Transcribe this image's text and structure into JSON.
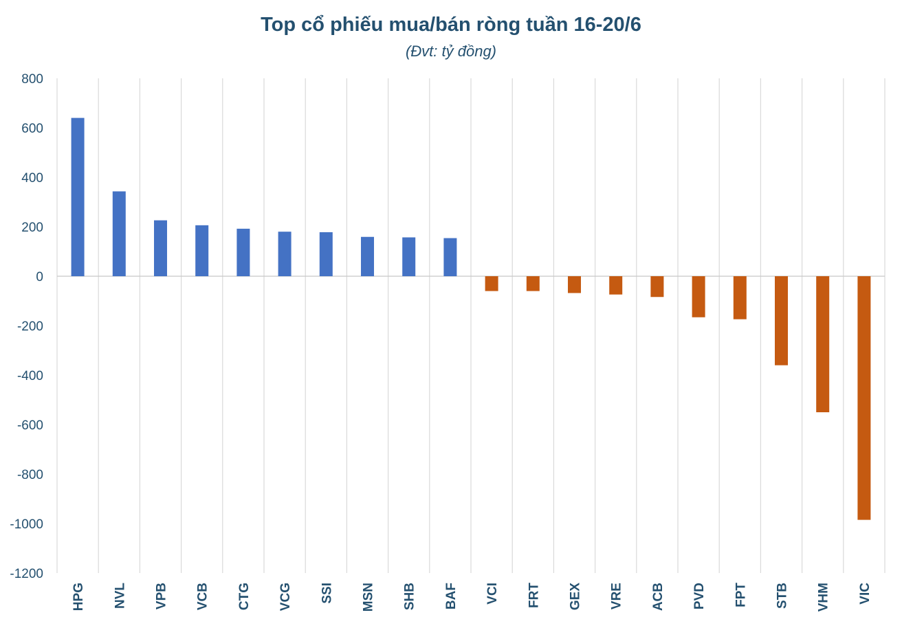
{
  "chart_data": {
    "type": "bar",
    "title": "Top cổ phiếu mua/bán ròng tuần 16-20/6",
    "subtitle": "(Đvt: tỷ đồng)",
    "xlabel": "",
    "ylabel": "",
    "ylim": [
      -1200,
      800
    ],
    "yticks": [
      800,
      600,
      400,
      200,
      0,
      -200,
      -400,
      -600,
      -800,
      -1000,
      -1200
    ],
    "grid": "vertical",
    "legend": "none",
    "categories": [
      "HPG",
      "NVL",
      "VPB",
      "VCB",
      "CTG",
      "VCG",
      "SSI",
      "MSN",
      "SHB",
      "BAF",
      "VCI",
      "FRT",
      "GEX",
      "VRE",
      "ACB",
      "PVD",
      "FPT",
      "STB",
      "VHM",
      "VIC"
    ],
    "values": [
      640,
      343,
      226,
      206,
      192,
      180,
      178,
      159,
      157,
      154,
      -60,
      -60,
      -68,
      -74,
      -84,
      -166,
      -174,
      -360,
      -550,
      -985
    ],
    "colors": {
      "positive": "#4472c4",
      "negative": "#c55a11",
      "text": "#24506f"
    }
  }
}
